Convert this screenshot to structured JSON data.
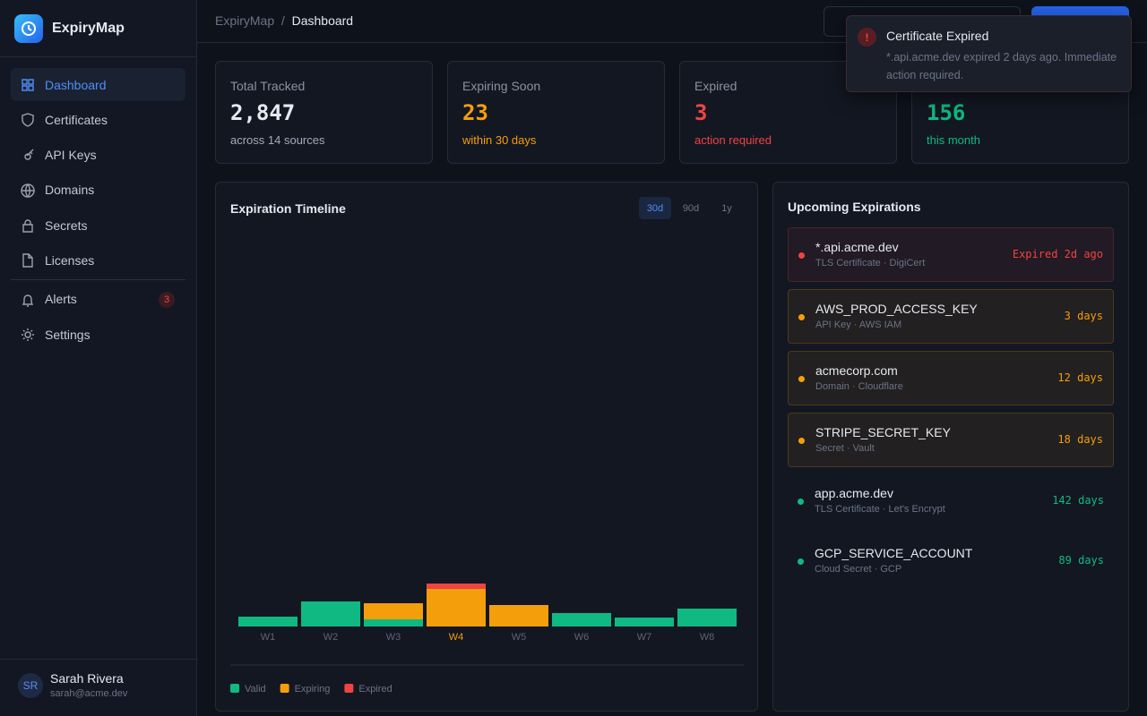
{
  "brand": {
    "name": "ExpiryMap"
  },
  "nav": [
    {
      "label": "Dashboard",
      "active": true
    },
    {
      "label": "Certificates"
    },
    {
      "label": "API Keys"
    },
    {
      "label": "Domains"
    },
    {
      "label": "Secrets"
    },
    {
      "label": "Licenses"
    },
    {
      "label": "Alerts",
      "badge": "3"
    },
    {
      "label": "Settings"
    }
  ],
  "user": {
    "initials": "SR",
    "name": "Sarah Rivera",
    "email": "sarah@acme.dev"
  },
  "breadcrumb": [
    "ExpiryMap",
    "Dashboard"
  ],
  "stats": [
    {
      "label": "Total Tracked",
      "value": "2,847",
      "note": "across 14 sources",
      "color": "#e6e9ef",
      "note_color": "#a3aab8"
    },
    {
      "label": "Expiring Soon",
      "value": "23",
      "note": "within 30 days",
      "color": "#f59e0b",
      "note_color": "#f59e0b"
    },
    {
      "label": "Expired",
      "value": "3",
      "note": "action required",
      "color": "#ef4444",
      "note_color": "#ef4444"
    },
    {
      "value": "156",
      "note": "this month",
      "color": "#10b981",
      "note_color": "#10b981"
    }
  ],
  "chart_data": {
    "type": "bar",
    "stacked": true,
    "title": "Expiration Timeline",
    "periods": [
      {
        "label": "30d",
        "active": true
      },
      {
        "label": "90d"
      },
      {
        "label": "1y"
      }
    ],
    "categories": [
      "W1",
      "W2",
      "W3",
      "W4",
      "W5",
      "W6",
      "W7",
      "W8"
    ],
    "highlight_category": 3,
    "series": [
      {
        "name": "Valid",
        "color": "#10b981",
        "values": [
          11,
          28,
          8,
          0,
          0,
          15,
          10,
          20
        ]
      },
      {
        "name": "Expiring",
        "color": "#f59e0b",
        "values": [
          0,
          0,
          18,
          42,
          24,
          0,
          0,
          0
        ]
      },
      {
        "name": "Expired",
        "color": "#ef4444",
        "values": [
          0,
          0,
          0,
          6,
          0,
          0,
          0,
          0
        ]
      }
    ]
  },
  "upcoming": {
    "title": "Upcoming Expirations",
    "items": [
      {
        "name": "*.api.acme.dev",
        "meta": "TLS Certificate · DigiCert",
        "due": "Expired 2d ago",
        "color": "#ef4444",
        "boxed": true
      },
      {
        "name": "AWS_PROD_ACCESS_KEY",
        "meta": "API Key · AWS IAM",
        "due": "3 days",
        "color": "#f59e0b",
        "boxed": true
      },
      {
        "name": "acmecorp.com",
        "meta": "Domain · Cloudflare",
        "due": "12 days",
        "color": "#f59e0b",
        "boxed": true
      },
      {
        "name": "STRIPE_SECRET_KEY",
        "meta": "Secret · Vault",
        "due": "18 days",
        "color": "#f59e0b",
        "boxed": true
      },
      {
        "name": "app.acme.dev",
        "meta": "TLS Certificate · Let's Encrypt",
        "due": "142 days",
        "color": "#10b981",
        "boxed": false
      },
      {
        "name": "GCP_SERVICE_ACCOUNT",
        "meta": "Cloud Secret · GCP",
        "due": "89 days",
        "color": "#10b981",
        "boxed": false
      }
    ]
  },
  "toast": {
    "title": "Certificate Expired",
    "message": "*.api.acme.dev expired 2 days ago. Immediate action required."
  }
}
